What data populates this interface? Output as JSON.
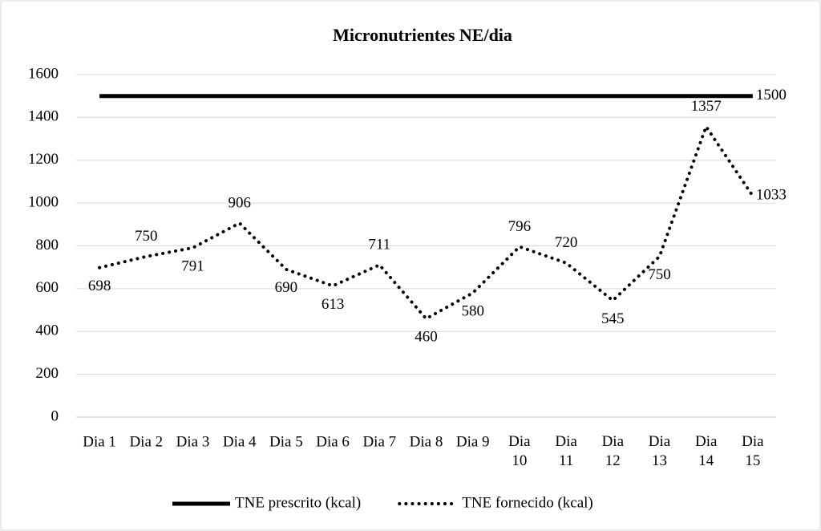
{
  "chart_data": {
    "type": "line",
    "title": "Micronutrientes NE/dia",
    "categories": [
      "Dia 1",
      "Dia 2",
      "Dia 3",
      "Dia 4",
      "Dia 5",
      "Dia 6",
      "Dia 7",
      "Dia 8",
      "Dia 9",
      "Dia 10",
      "Dia 11",
      "Dia 12",
      "Dia 13",
      "Dia 14",
      "Dia 15"
    ],
    "series": [
      {
        "name": "TNE prescrito (kcal)",
        "color": "#000000",
        "style": "solid",
        "labels": "last",
        "values": [
          1500,
          1500,
          1500,
          1500,
          1500,
          1500,
          1500,
          1500,
          1500,
          1500,
          1500,
          1500,
          1500,
          1500,
          1500
        ]
      },
      {
        "name": "TNE fornecido  (kcal)",
        "color": "#000000",
        "style": "dotted",
        "labels": "all",
        "values": [
          698,
          750,
          791,
          906,
          690,
          613,
          711,
          460,
          580,
          796,
          720,
          545,
          750,
          1357,
          1033
        ]
      }
    ],
    "ylim": [
      0,
      1600
    ],
    "yticks": [
      0,
      200,
      400,
      600,
      800,
      1000,
      1200,
      1400,
      1600
    ],
    "grid": true,
    "legend": "bottom"
  }
}
